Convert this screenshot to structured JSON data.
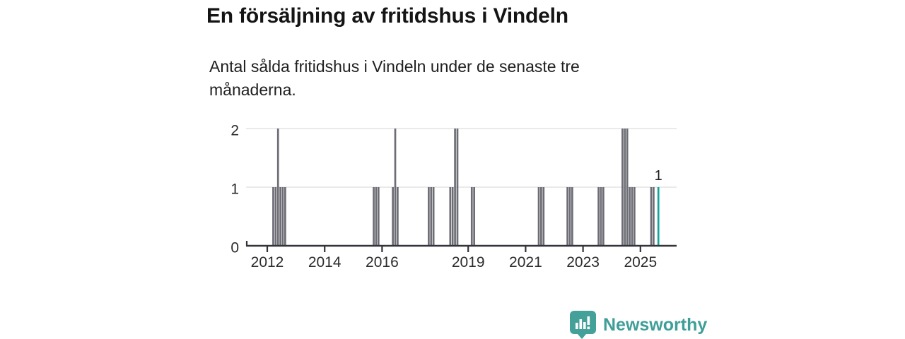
{
  "header": {
    "title": "En försäljning av fritidshus i Vindeln",
    "subtitle": "Antal sålda fritidshus i Vindeln under de senaste tre månaderna."
  },
  "brand": {
    "name": "Newsworthy",
    "color": "#3f9e98",
    "icon": "bar-chart-speech-bubble-icon"
  },
  "chart_data": {
    "type": "bar",
    "title": "En försäljning av fritidshus i Vindeln",
    "ylabel": "Antal sålda fritidshus",
    "xlabel": "",
    "grid": "horizontal",
    "x_axis": {
      "tick_years": [
        2012,
        2014,
        2016,
        2019,
        2021,
        2023,
        2025
      ],
      "min_year": 2011.26,
      "max_year": 2026.26
    },
    "y_axis": {
      "ticks": [
        0,
        1,
        2
      ],
      "min": 0,
      "max": 2
    },
    "annotation": {
      "label": "1",
      "month": "2025-08"
    },
    "colors": {
      "bar": "#6d6d75",
      "highlight": "#12a49b",
      "gridline": "#e3e3e3",
      "axis": "#33333b",
      "tick_label": "#2b2b2b",
      "annotation": "#1a1a1a"
    },
    "bars": [
      {
        "month": "2012-03",
        "value": 1
      },
      {
        "month": "2012-04",
        "value": 1
      },
      {
        "month": "2012-05",
        "value": 2
      },
      {
        "month": "2012-06",
        "value": 1
      },
      {
        "month": "2012-07",
        "value": 1
      },
      {
        "month": "2012-08",
        "value": 1
      },
      {
        "month": "2015-09",
        "value": 1
      },
      {
        "month": "2015-10",
        "value": 1
      },
      {
        "month": "2015-11",
        "value": 1
      },
      {
        "month": "2016-05",
        "value": 1
      },
      {
        "month": "2016-06",
        "value": 2
      },
      {
        "month": "2016-07",
        "value": 1
      },
      {
        "month": "2017-08",
        "value": 1
      },
      {
        "month": "2017-09",
        "value": 1
      },
      {
        "month": "2017-10",
        "value": 1
      },
      {
        "month": "2018-05",
        "value": 1
      },
      {
        "month": "2018-06",
        "value": 1
      },
      {
        "month": "2018-07",
        "value": 2
      },
      {
        "month": "2018-08",
        "value": 2
      },
      {
        "month": "2019-02",
        "value": 1
      },
      {
        "month": "2019-03",
        "value": 1
      },
      {
        "month": "2021-06",
        "value": 1
      },
      {
        "month": "2021-07",
        "value": 1
      },
      {
        "month": "2021-08",
        "value": 1
      },
      {
        "month": "2022-06",
        "value": 1
      },
      {
        "month": "2022-07",
        "value": 1
      },
      {
        "month": "2022-08",
        "value": 1
      },
      {
        "month": "2023-07",
        "value": 1
      },
      {
        "month": "2023-08",
        "value": 1
      },
      {
        "month": "2023-09",
        "value": 1
      },
      {
        "month": "2024-05",
        "value": 2
      },
      {
        "month": "2024-06",
        "value": 2
      },
      {
        "month": "2024-07",
        "value": 2
      },
      {
        "month": "2024-08",
        "value": 1
      },
      {
        "month": "2024-09",
        "value": 1
      },
      {
        "month": "2024-10",
        "value": 1
      },
      {
        "month": "2025-05",
        "value": 1
      },
      {
        "month": "2025-06",
        "value": 1
      },
      {
        "month": "2025-08",
        "value": 1,
        "highlight": true,
        "label": "1"
      }
    ]
  }
}
